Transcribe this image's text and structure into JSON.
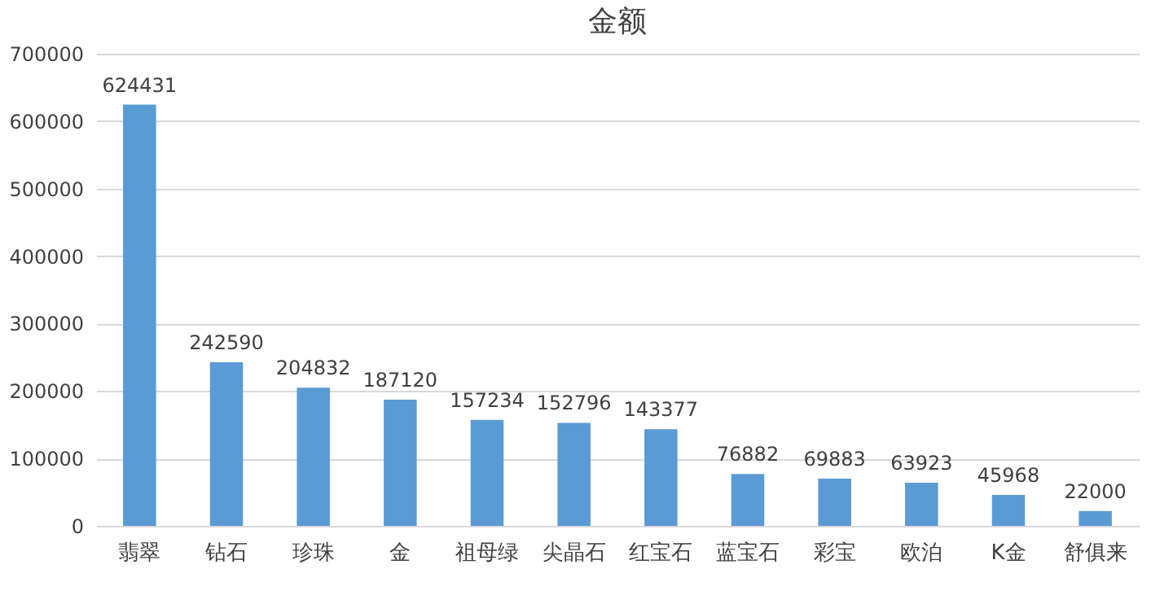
{
  "chart_data": {
    "type": "bar",
    "title": "金额",
    "categories": [
      "翡翠",
      "钻石",
      "珍珠",
      "金",
      "祖母绿",
      "尖晶石",
      "红宝石",
      "蓝宝石",
      "彩宝",
      "欧泊",
      "K金",
      "舒俱来"
    ],
    "values": [
      624431,
      242590,
      204832,
      187120,
      157234,
      152796,
      143377,
      76882,
      69883,
      63923,
      45968,
      22000
    ],
    "color": "#5b9bd5",
    "ylim": [
      0,
      700000
    ],
    "yticks": [
      0,
      100000,
      200000,
      300000,
      400000,
      500000,
      600000,
      700000
    ],
    "grid": "y",
    "data_labels": true
  }
}
